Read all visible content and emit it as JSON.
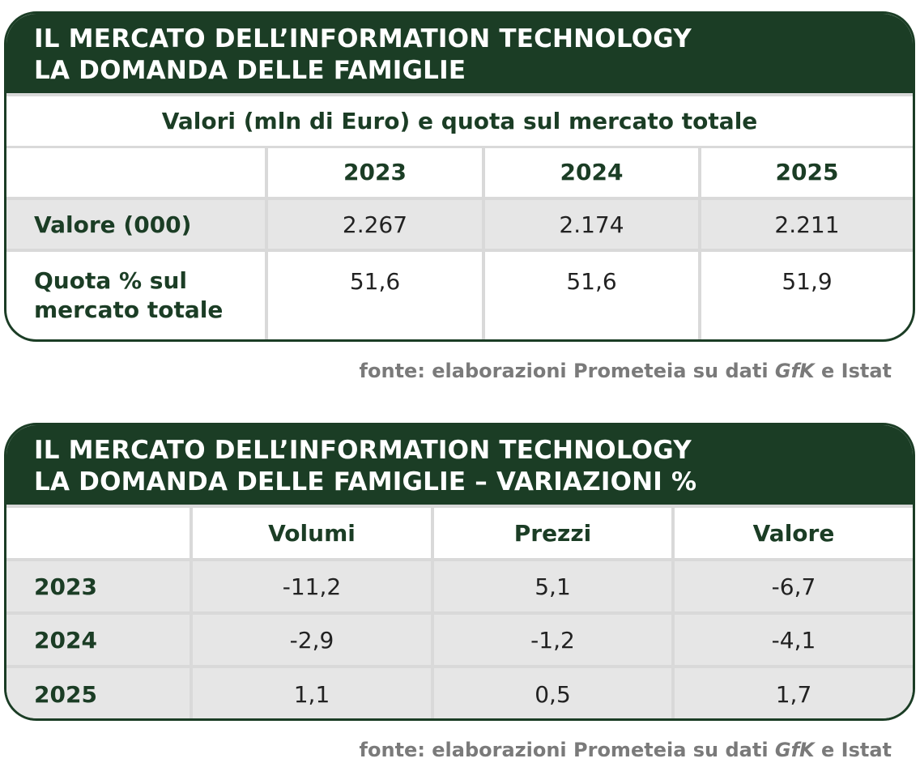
{
  "table1": {
    "title_line1": "IL MERCATO DELL’INFORMATION TECHNOLOGY",
    "title_line2": "LA DOMANDA DELLE FAMIGLIE",
    "subtitle": "Valori (mln di Euro) e quota sul mercato totale",
    "columns": [
      "2023",
      "2024",
      "2025"
    ],
    "rows": [
      {
        "label": "Valore (000)",
        "values": [
          "2.267",
          "2.174",
          "2.211"
        ]
      },
      {
        "label_line1": "Quota % sul",
        "label_line2": "mercato totale",
        "values": [
          "51,6",
          "51,6",
          "51,9"
        ]
      }
    ],
    "source_prefix": "fonte: elaborazioni Prometeia su dati ",
    "source_italic": "GfK",
    "source_suffix": " e Istat"
  },
  "table2": {
    "title_line1": "IL MERCATO DELL’INFORMATION TECHNOLOGY",
    "title_line2": "LA DOMANDA DELLE FAMIGLIE – VARIAZIONI %",
    "columns": [
      "Volumi",
      "Prezzi",
      "Valore"
    ],
    "rows": [
      {
        "label": "2023",
        "values": [
          "-11,2",
          "5,1",
          "-6,7"
        ]
      },
      {
        "label": "2024",
        "values": [
          "-2,9",
          "-1,2",
          "-4,1"
        ]
      },
      {
        "label": "2025",
        "values": [
          "1,1",
          "0,5",
          "1,7"
        ]
      }
    ],
    "source_prefix": "fonte: elaborazioni Prometeia su dati ",
    "source_italic": "GfK",
    "source_suffix": " e Istat"
  },
  "colors": {
    "brand_green": "#1b3d25",
    "row_grey": "#e6e6e6",
    "source_grey": "#7a7a7a"
  }
}
